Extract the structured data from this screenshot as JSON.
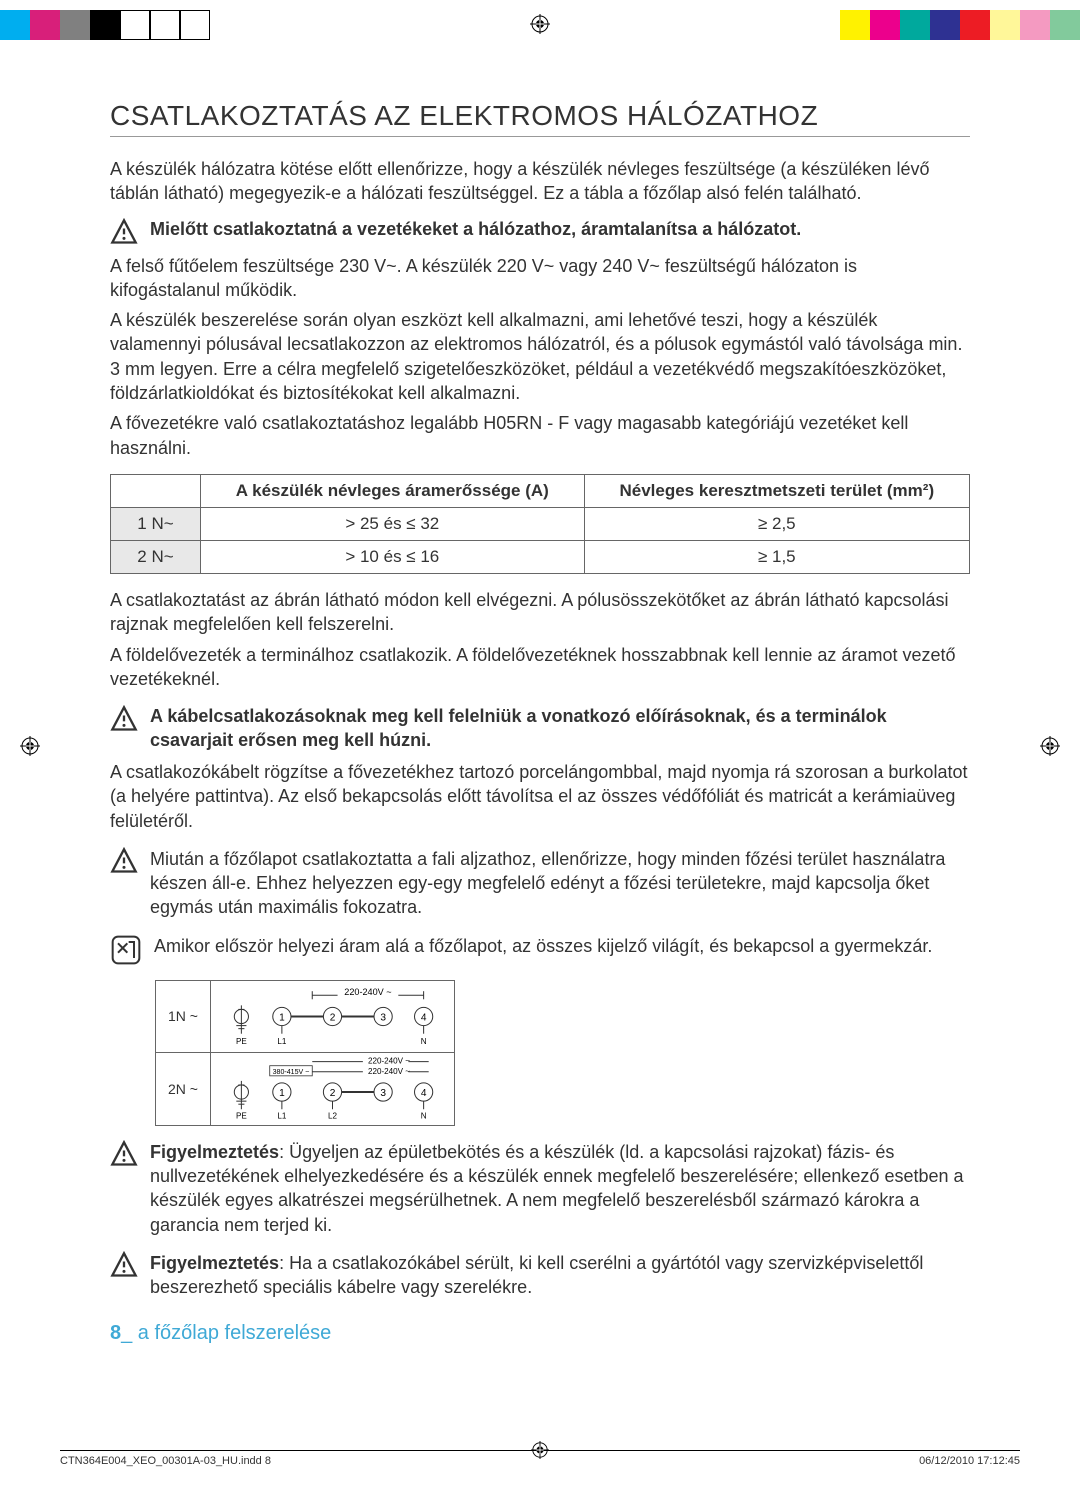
{
  "print_marks": {
    "left_colors": [
      "#00aeef",
      "#d81f7a",
      "#808080",
      "#000000",
      "#ffffff",
      "#ffffff",
      "#ffffff"
    ],
    "right_colors": [
      "#fff200",
      "#ec008c",
      "#00a99d",
      "#2e3192",
      "#ed1c24",
      "#fff799",
      "#f49ac1",
      "#82ca9c"
    ]
  },
  "title": "CSATLAKOZTATÁS AZ ELEKTROMOS HÁLÓZATHOZ",
  "intro": "A készülék hálózatra kötése előtt ellenőrizze, hogy a készülék névleges feszültsége (a készüléken lévő táblán látható) megegyezik-e a hálózati feszültséggel. Ez a tábla a főzőlap alsó felén található.",
  "warn1": "Mielőtt csatlakoztatná a vezetékeket a hálózathoz, áramtalanítsa a hálózatot.",
  "para1a": "A felső fűtőelem feszültsége 230 V~. A készülék 220 V~ vagy 240 V~ feszültségű hálózaton is kifogástalanul működik.",
  "para1b": "A készülék beszerelése során olyan eszközt kell alkalmazni, ami lehetővé teszi, hogy a készülék valamennyi pólusával lecsatlakozzon az elektromos hálózatról, és a pólusok egymástól való távolsága min. 3 mm legyen. Erre a célra megfelelő szigetelőeszközöket, például a vezetékvédő megszakítóeszközöket, földzárlatkioldókat és biztosítékokat kell alkalmazni.",
  "para1c": "A fővezetékre való csatlakoztatáshoz legalább H05RN - F vagy magasabb kategóriájú vezetéket kell használni.",
  "table": {
    "h1": "A készülék névleges áramerőssége (A)",
    "h2": "Névleges keresztmetszeti terület (mm²)",
    "rows": [
      {
        "lbl": "1 N~",
        "amp": "> 25 és ≤ 32",
        "area": "≥ 2,5"
      },
      {
        "lbl": "2 N~",
        "amp": "> 10 és ≤ 16",
        "area": "≥ 1,5"
      }
    ]
  },
  "para2a": "A csatlakoztatást az ábrán látható módon kell elvégezni. A pólusösszekötőket az ábrán látható kapcsolási rajznak megfelelően kell felszerelni.",
  "para2b": "A földelővezeték a terminálhoz csatlakozik. A földelővezetéknek hosszabbnak kell lennie az áramot vezető vezetékeknél.",
  "warn2": "A kábelcsatlakozásoknak meg kell felelniük a vonatkozó előírásoknak, és a terminálok csavarjait erősen meg kell húzni.",
  "para3": "A csatlakozókábelt rögzítse a fővezetékhez tartozó porcelángombbal, majd nyomja rá szorosan a burkolatot (a helyére pattintva). Az első bekapcsolás előtt távolítsa el az összes védőfóliát és matricát a kerámiaüveg felületéről.",
  "warn3": "Miután a főzőlapot csatlakoztatta a fali aljzathoz, ellenőrizze, hogy minden főzési terület használatra készen áll-e. Ehhez helyezzen egy-egy megfelelő edényt a főzési területekre, majd kapcsolja őket egymás után maximális fokozatra.",
  "note1": "Amikor először helyezi áram alá a főzőlapot, az összes kijelző világít, és bekapcsol a gyermekzár.",
  "wiring": {
    "rows": [
      {
        "lbl": "1N ~",
        "v_top": "220-240V ~",
        "pins_bottom": [
          "PE",
          "L1",
          "",
          "",
          "N"
        ]
      },
      {
        "lbl": "2N ~",
        "v_side": "380-415V ~",
        "v_top1": "220-240V ~",
        "v_top2": "220-240V ~",
        "pins_bottom": [
          "PE",
          "L1",
          "L2",
          "",
          "N"
        ]
      }
    ]
  },
  "warn4_label": "Figyelmeztetés",
  "warn4": ": Ügyeljen az épületbekötés és a készülék (ld. a kapcsolási rajzokat) fázis- és nullvezetékének elhelyezkedésére és a készülék ennek megfelelő beszerelésére; ellenkező esetben a készülék egyes alkatrészei megsérülhetnek. A nem megfelelő beszerelésből származó károkra a garancia nem terjed ki.",
  "warn5_label": "Figyelmeztetés",
  "warn5": ": Ha a csatlakozókábel sérült, ki kell cserélni a gyártótól vagy szervizképviselettől beszerezhető speciális kábelre vagy szerelékre.",
  "footer_num": "8",
  "footer_sep": "_",
  "footer_text": " a főzőlap felszerelése",
  "bottom_left": "CTN364E004_XEO_00301A-03_HU.indd   8",
  "bottom_right": "06/12/2010   17:12:45"
}
